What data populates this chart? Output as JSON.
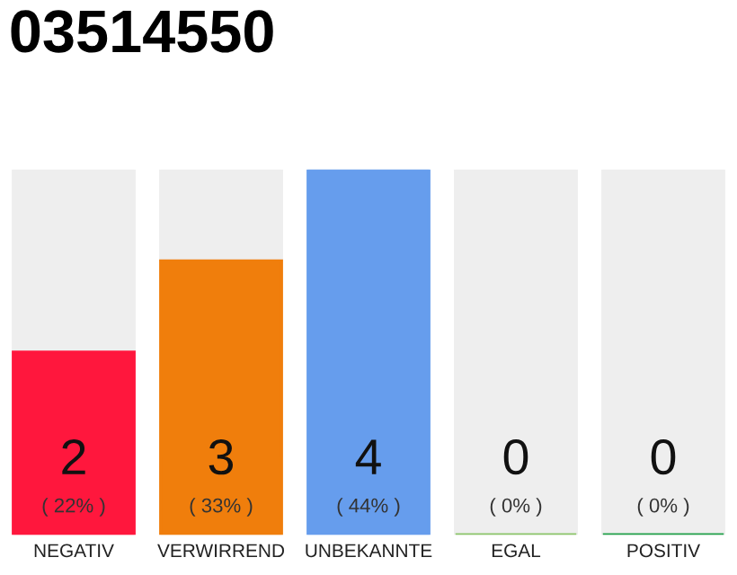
{
  "chart_data": {
    "type": "bar",
    "title": "03514550",
    "stacked": true,
    "categories": [
      "NEGATIV",
      "VERWIRREND",
      "UNBEKANNTE",
      "EGAL",
      "POSITIV"
    ],
    "series": [
      {
        "colors": [
          "#ff173d",
          "#f07e0c",
          "#669ded",
          "#8cc56a",
          "#22a04a"
        ],
        "values": [
          2,
          3,
          4,
          0,
          0
        ],
        "value_labels": [
          "2\n( 22% )",
          "3\n( 33% )",
          "4\n( 44% )",
          "0\n( 0% )",
          "0\n( 0% )"
        ]
      },
      {
        "color": "#eeeeee",
        "values": [
          2,
          1,
          0,
          4,
          4
        ]
      }
    ],
    "ylim": [
      0,
      4
    ],
    "tick_labels": "x",
    "grid": false,
    "legend": false
  }
}
